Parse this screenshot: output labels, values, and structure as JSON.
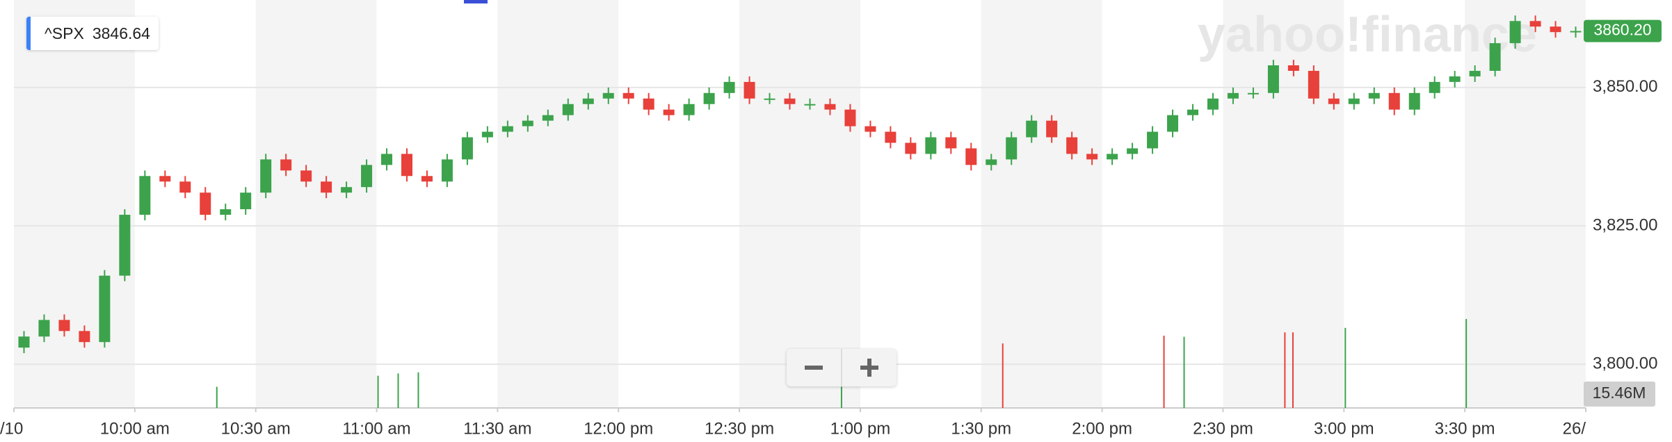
{
  "chart_data": {
    "type": "candlestick",
    "symbol": "^SPX",
    "symbol_value": "3846.64",
    "watermark": "yahoo!finance",
    "x": [
      "09:30",
      "09:35",
      "09:40",
      "09:45",
      "09:50",
      "09:55",
      "10:00",
      "10:05",
      "10:10",
      "10:15",
      "10:20",
      "10:25",
      "10:30",
      "10:35",
      "10:40",
      "10:45",
      "10:50",
      "10:55",
      "11:00",
      "11:05",
      "11:10",
      "11:15",
      "11:20",
      "11:25",
      "11:30",
      "11:35",
      "11:40",
      "11:45",
      "11:50",
      "11:55",
      "12:00",
      "12:05",
      "12:10",
      "12:15",
      "12:20",
      "12:25",
      "12:30",
      "12:35",
      "12:40",
      "12:45",
      "12:50",
      "12:55",
      "13:00",
      "13:05",
      "13:10",
      "13:15",
      "13:20",
      "13:25",
      "13:30",
      "13:35",
      "13:40",
      "13:45",
      "13:50",
      "13:55",
      "14:00",
      "14:05",
      "14:10",
      "14:15",
      "14:20",
      "14:25",
      "14:30",
      "14:35",
      "14:40",
      "14:45",
      "14:50",
      "14:55",
      "15:00",
      "15:05",
      "15:10",
      "15:15",
      "15:20",
      "15:25",
      "15:30",
      "15:35",
      "15:40",
      "15:45",
      "15:50",
      "15:55"
    ],
    "open": [
      3803,
      3805,
      3808,
      3806,
      3804,
      3816,
      3827,
      3834,
      3833,
      3831,
      3827,
      3828,
      3831,
      3837,
      3835,
      3833,
      3831,
      3832,
      3836,
      3838,
      3834,
      3833,
      3837,
      3841,
      3842,
      3843,
      3844,
      3845,
      3847,
      3848,
      3849,
      3848,
      3846,
      3845,
      3847,
      3849,
      3851,
      3848,
      3848,
      3847,
      3847,
      3846,
      3843,
      3842,
      3840,
      3838,
      3841,
      3839,
      3836,
      3837,
      3841,
      3844,
      3841,
      3838,
      3837,
      3838,
      3839,
      3842,
      3845,
      3846,
      3848,
      3849,
      3849,
      3854,
      3853,
      3848,
      3847,
      3848,
      3849,
      3846,
      3849,
      3851,
      3852,
      3853,
      3858,
      3862,
      3861,
      3860
    ],
    "high": [
      3806,
      3809,
      3809,
      3807,
      3817,
      3828,
      3835,
      3835,
      3834,
      3832,
      3829,
      3832,
      3838,
      3838,
      3836,
      3834,
      3833,
      3837,
      3839,
      3839,
      3835,
      3838,
      3842,
      3843,
      3844,
      3845,
      3846,
      3848,
      3849,
      3850,
      3850,
      3849,
      3847,
      3848,
      3850,
      3852,
      3852,
      3849,
      3849,
      3848,
      3848,
      3847,
      3844,
      3843,
      3841,
      3842,
      3842,
      3840,
      3838,
      3842,
      3845,
      3845,
      3842,
      3839,
      3839,
      3840,
      3843,
      3846,
      3847,
      3849,
      3850,
      3850,
      3855,
      3855,
      3854,
      3849,
      3849,
      3850,
      3850,
      3850,
      3852,
      3853,
      3854,
      3859,
      3863,
      3863,
      3862,
      3861
    ],
    "low": [
      3802,
      3804,
      3805,
      3803,
      3803,
      3815,
      3826,
      3832,
      3830,
      3826,
      3826,
      3827,
      3830,
      3834,
      3832,
      3830,
      3830,
      3831,
      3835,
      3833,
      3832,
      3832,
      3836,
      3840,
      3841,
      3842,
      3843,
      3844,
      3846,
      3847,
      3847,
      3845,
      3844,
      3844,
      3846,
      3848,
      3847,
      3847,
      3846,
      3846,
      3845,
      3842,
      3841,
      3839,
      3837,
      3837,
      3838,
      3835,
      3835,
      3836,
      3840,
      3840,
      3837,
      3836,
      3836,
      3837,
      3838,
      3841,
      3844,
      3845,
      3847,
      3848,
      3848,
      3852,
      3847,
      3846,
      3846,
      3847,
      3845,
      3845,
      3848,
      3850,
      3851,
      3852,
      3857,
      3860,
      3859,
      3859
    ],
    "close": [
      3805,
      3808,
      3806,
      3804,
      3816,
      3827,
      3834,
      3833,
      3831,
      3827,
      3828,
      3831,
      3837,
      3835,
      3833,
      3831,
      3832,
      3836,
      3838,
      3834,
      3833,
      3837,
      3841,
      3842,
      3843,
      3844,
      3845,
      3847,
      3848,
      3849,
      3848,
      3846,
      3845,
      3847,
      3849,
      3851,
      3848,
      3848,
      3847,
      3847,
      3846,
      3843,
      3842,
      3840,
      3838,
      3841,
      3839,
      3836,
      3837,
      3841,
      3844,
      3841,
      3838,
      3837,
      3838,
      3839,
      3842,
      3845,
      3846,
      3848,
      3849,
      3849,
      3854,
      3853,
      3848,
      3847,
      3848,
      3849,
      3846,
      3849,
      3851,
      3852,
      3853,
      3858,
      3862,
      3861,
      3860,
      3860.2
    ],
    "up_color": "#3ca34c",
    "down_color": "#e8403a",
    "ylim": [
      3792.1,
      3865.8
    ],
    "yticks": [
      {
        "value": 3800,
        "label": "3,800.00"
      },
      {
        "value": 3825,
        "label": "3,825.00"
      },
      {
        "value": 3850,
        "label": "3,850.00"
      }
    ],
    "xlim": [
      "09:30",
      "16:00"
    ],
    "xticks": [
      {
        "value": "09:30",
        "label": "/10"
      },
      {
        "value": "10:00",
        "label": "10:00 am"
      },
      {
        "value": "10:30",
        "label": "10:30 am"
      },
      {
        "value": "11:00",
        "label": "11:00 am"
      },
      {
        "value": "11:30",
        "label": "11:30 am"
      },
      {
        "value": "12:00",
        "label": "12:00 pm"
      },
      {
        "value": "12:30",
        "label": "12:30 pm"
      },
      {
        "value": "13:00",
        "label": "1:00 pm"
      },
      {
        "value": "13:30",
        "label": "1:30 pm"
      },
      {
        "value": "14:00",
        "label": "2:00 pm"
      },
      {
        "value": "14:30",
        "label": "2:30 pm"
      },
      {
        "value": "15:00",
        "label": "3:00 pm"
      },
      {
        "value": "15:30",
        "label": "3:30 pm"
      },
      {
        "value": "16:00",
        "label": "26/"
      }
    ],
    "grid": true,
    "last_price": {
      "value": 3860.2,
      "label": "3860.20"
    },
    "volume": {
      "x": [
        "10:20",
        "11:00",
        "11:05",
        "11:10",
        "12:55",
        "13:35",
        "14:15",
        "14:20",
        "14:45",
        "14:47",
        "15:00",
        "15:30"
      ],
      "values": [
        19,
        29,
        31,
        32,
        19,
        58,
        65,
        64,
        68,
        68,
        72,
        80
      ],
      "colors": [
        "#3ca34c",
        "#3ca34c",
        "#3ca34c",
        "#3ca34c",
        "#3ca34c",
        "#e8403a",
        "#e8403a",
        "#3ca34c",
        "#e8403a",
        "#e8403a",
        "#3ca34c",
        "#3ca34c"
      ],
      "ylim": [
        0,
        100
      ],
      "label": "15.46M"
    }
  }
}
